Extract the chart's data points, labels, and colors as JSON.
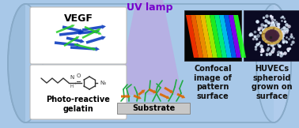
{
  "bg_color": "#a8c8e8",
  "cylinder_edge": "#88aac8",
  "uv_beam_color": "#c0a0e0",
  "uv_beam_alpha": 0.6,
  "uv_label": "UV lamp",
  "uv_label_color": "#7700cc",
  "uv_label_fontsize": 9,
  "panel1_title": "VEGF",
  "panel2_title": "Photo-reactive\ngelatin",
  "panel3_title": "Confocal\nimage of\npattern\nsurface",
  "panel4_title": "HUVECs\nspheroid\ngrown on\nsurface",
  "substrate_label": "Substrate",
  "label_fontsize": 7,
  "label_color": "#111111",
  "figsize": [
    3.78,
    1.62
  ],
  "dpi": 100,
  "confocal_colors": [
    "#ff2200",
    "#ff6600",
    "#ffaa00",
    "#ffdd00",
    "#aaff00",
    "#00ff44",
    "#00ffaa",
    "#00aaff",
    "#0044ff",
    "#6600ff"
  ],
  "vegf_blue": "#0033bb",
  "vegf_green": "#22cc22",
  "gelatin_line": "#666666",
  "substrate_molecule_green": "#22aa44",
  "substrate_molecule_orange": "#dd6600"
}
